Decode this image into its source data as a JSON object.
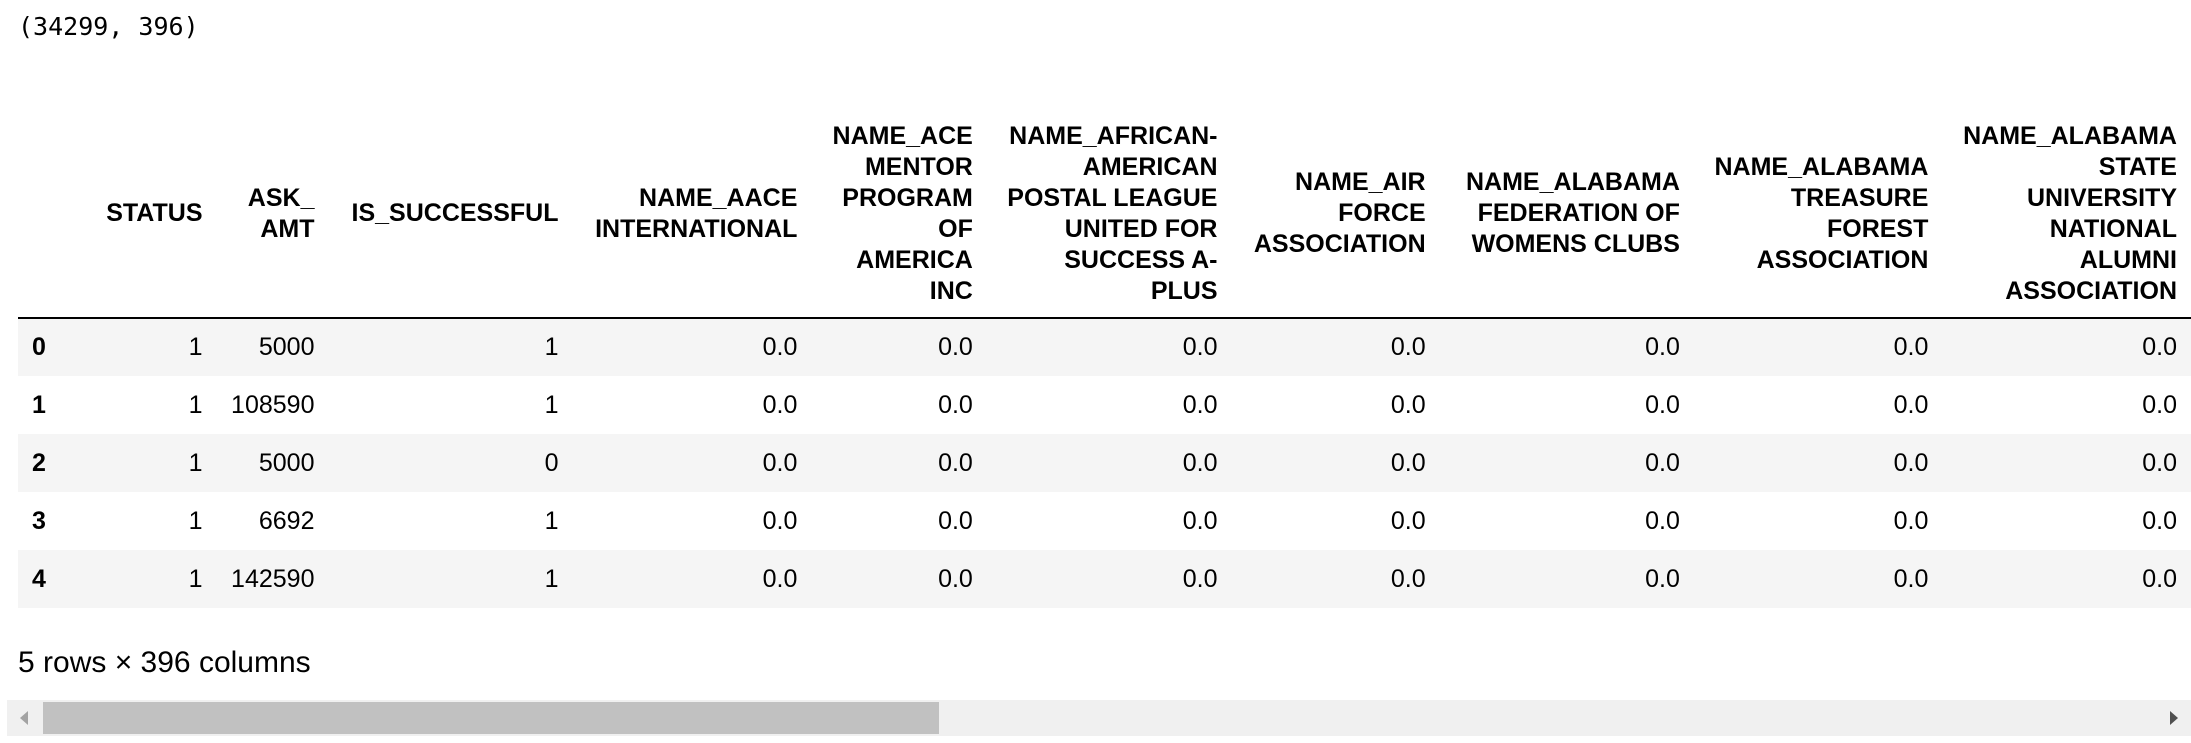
{
  "output": {
    "shape_text": "(34299, 396)"
  },
  "dataframe": {
    "columns": [
      "STATUS",
      "ASK_AMT",
      "IS_SUCCESSFUL",
      "NAME_AACE INTERNATIONAL",
      "NAME_ACE MENTOR PROGRAM OF AMERICA INC",
      "NAME_AFRICAN-AMERICAN POSTAL LEAGUE UNITED FOR SUCCESS A-PLUS",
      "NAME_AIR FORCE ASSOCIATION",
      "NAME_ALABAMA FEDERATION OF WOMENS CLUBS",
      "NAME_ALABAMA TREASURE FOREST ASSOCIATION",
      "NAME_ALABAMA STATE UNIVERSITY NATIONAL ALUMNI ASSOCIATION"
    ],
    "index": [
      "0",
      "1",
      "2",
      "3",
      "4"
    ],
    "rows": [
      [
        "1",
        "5000",
        "1",
        "0.0",
        "0.0",
        "0.0",
        "0.0",
        "0.0",
        "0.0",
        "0.0"
      ],
      [
        "1",
        "108590",
        "1",
        "0.0",
        "0.0",
        "0.0",
        "0.0",
        "0.0",
        "0.0",
        "0.0"
      ],
      [
        "1",
        "5000",
        "0",
        "0.0",
        "0.0",
        "0.0",
        "0.0",
        "0.0",
        "0.0",
        "0.0"
      ],
      [
        "1",
        "6692",
        "1",
        "0.0",
        "0.0",
        "0.0",
        "0.0",
        "0.0",
        "0.0",
        "0.0"
      ],
      [
        "1",
        "142590",
        "1",
        "0.0",
        "0.0",
        "0.0",
        "0.0",
        "0.0",
        "0.0",
        "0.0"
      ]
    ],
    "footer": "5 rows × 396 columns"
  },
  "scrollbar": {
    "left_arrow_icon": "arrow-left-icon",
    "right_arrow_icon": "arrow-right-icon",
    "thumb_fraction": 0.41,
    "colors": {
      "track": "#f0f0f0",
      "thumb": "#c1c1c1"
    }
  }
}
